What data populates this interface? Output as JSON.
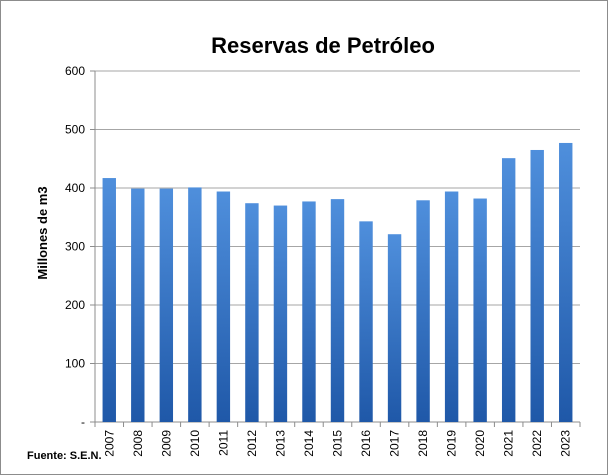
{
  "chart_data": {
    "type": "bar",
    "title": "Reservas de Petróleo",
    "ylabel": "Millones de m3",
    "xlabel": "",
    "categories": [
      "2007",
      "2008",
      "2009",
      "2010",
      "2011",
      "2012",
      "2013",
      "2014",
      "2015",
      "2016",
      "2017",
      "2018",
      "2019",
      "2020",
      "2021",
      "2022",
      "2023"
    ],
    "values": [
      417,
      399,
      399,
      401,
      394,
      374,
      370,
      377,
      381,
      343,
      321,
      379,
      394,
      382,
      451,
      465,
      477
    ],
    "ylim": [
      0,
      600
    ],
    "yticks": [
      0,
      100,
      200,
      300,
      400,
      500,
      600
    ],
    "ytick_labels": [
      "-",
      "100",
      "200",
      "300",
      "400",
      "500",
      "600"
    ],
    "grid": true,
    "legend": "none",
    "colors": {
      "bar_top": "#4f8fdc",
      "bar_bottom": "#1f58a8",
      "grid": "#a6a6a6"
    },
    "source": "Fuente: S.E.N."
  }
}
